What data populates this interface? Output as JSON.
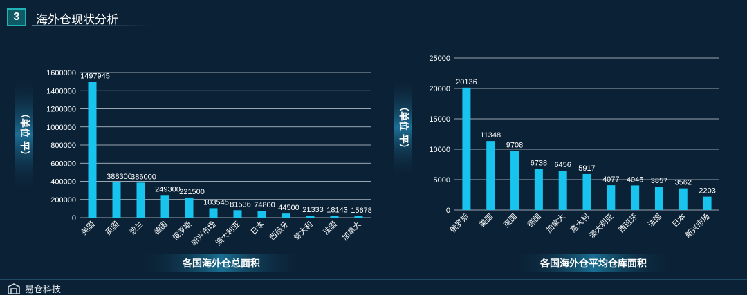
{
  "header": {
    "number": "3",
    "title": "海外仓现状分析"
  },
  "footer": {
    "logo_text": "易仓科技"
  },
  "colors": {
    "bar": "#18c4ee",
    "grid": "#c9d4dc",
    "text": "#ffffff",
    "background": "#0b2236",
    "accent": "#1fb3b3"
  },
  "chart_data": [
    {
      "type": "bar",
      "ylabel": "（单位 平）",
      "title": "各国海外仓总面积",
      "categories": [
        "美国",
        "英国",
        "波兰",
        "德国",
        "俄罗斯",
        "新兴市场",
        "澳大利亚",
        "日本",
        "西班牙",
        "意大利",
        "法国",
        "加拿大"
      ],
      "values": [
        1497945,
        388300,
        386000,
        249300,
        221500,
        103545,
        81536,
        74800,
        44500,
        21333,
        18143,
        15678
      ],
      "ylim": [
        0,
        1600000
      ],
      "yticks": [
        0,
        200000,
        400000,
        600000,
        800000,
        1000000,
        1200000,
        1400000,
        1600000
      ],
      "grid": true,
      "data_labels": true
    },
    {
      "type": "bar",
      "ylabel": "（单位 平）",
      "title": "各国海外仓平均仓库面积",
      "categories": [
        "俄罗斯",
        "美国",
        "英国",
        "德国",
        "加拿大",
        "意大利",
        "澳大利亚",
        "西班牙",
        "法国",
        "日本",
        "新兴市场"
      ],
      "values": [
        20136,
        11348,
        9708,
        6738,
        6456,
        5917,
        4077,
        4045,
        3857,
        3562,
        2203
      ],
      "ylim": [
        0,
        25000
      ],
      "yticks": [
        0,
        5000,
        10000,
        15000,
        20000,
        25000
      ],
      "grid": true,
      "data_labels": true
    }
  ]
}
